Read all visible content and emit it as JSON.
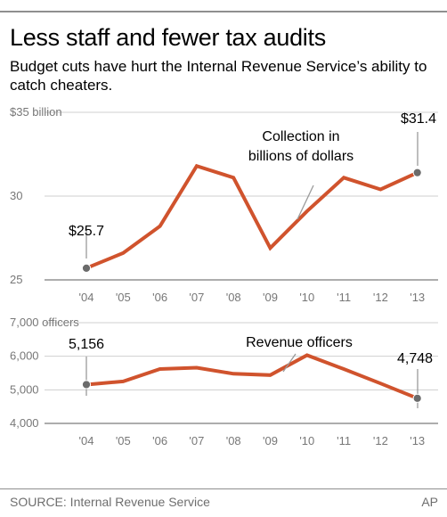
{
  "title": "Less staff and fewer tax audits",
  "subtitle": "Budget cuts have hurt the Internal Revenue Service’s ability to catch cheaters.",
  "source": "SOURCE: Internal Revenue Service",
  "credit": "AP",
  "colors": {
    "line": "#d0532d",
    "marker": "#6b6b6b",
    "tick": "#777777"
  },
  "chart_data": [
    {
      "type": "line",
      "categories": [
        "'04",
        "'05",
        "'06",
        "'07",
        "'08",
        "'09",
        "'10",
        "'11",
        "'12",
        "'13"
      ],
      "series": [
        {
          "values": [
            25.7,
            26.6,
            28.2,
            31.8,
            31.1,
            26.9,
            29.1,
            31.1,
            30.4,
            31.4
          ]
        }
      ],
      "ylim": [
        25,
        35
      ],
      "yticks": [
        25,
        30,
        35
      ],
      "ytick_labels": [
        "25",
        "30",
        "$35 billion"
      ],
      "grid": true,
      "annotations": [
        {
          "text": "$25.7",
          "index": 0
        },
        {
          "text": "$31.4",
          "index": 9
        },
        {
          "text": "Collection in",
          "index": 6
        },
        {
          "text": "billions of dollars",
          "index": 6
        }
      ]
    },
    {
      "type": "line",
      "categories": [
        "'04",
        "'05",
        "'06",
        "'07",
        "'08",
        "'09",
        "'10",
        "'11",
        "'12",
        "'13"
      ],
      "series": [
        {
          "values": [
            5156,
            5250,
            5620,
            5660,
            5480,
            5440,
            6030,
            5620,
            5190,
            4748
          ]
        }
      ],
      "ylim": [
        4000,
        7000
      ],
      "yticks": [
        4000,
        5000,
        6000,
        7000
      ],
      "ytick_labels": [
        "4,000",
        "5,000",
        "6,000",
        "7,000 officers"
      ],
      "grid": true,
      "annotations": [
        {
          "text": "5,156",
          "index": 0
        },
        {
          "text": "4,748",
          "index": 9
        },
        {
          "text": "Revenue officers",
          "index": 6
        }
      ]
    }
  ]
}
